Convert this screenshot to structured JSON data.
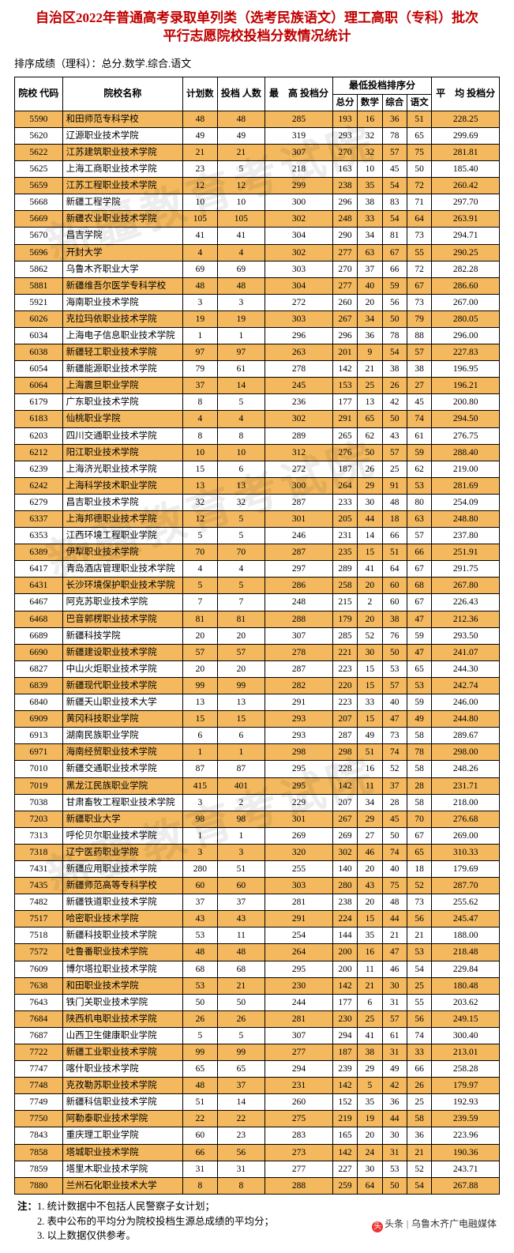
{
  "title_line1": "自治区2022年普通高考录取单列类（选考民族语文）理工高职（专科）批次",
  "title_line2": "平行志愿院校投档分数情况统计",
  "subtitle": "排序成绩（理科）：总分.数学.综合.语文",
  "watermark_text": "新疆教育考试院",
  "headers": {
    "code": "院校\n代码",
    "name": "院校名称",
    "plan": "计划数",
    "filed": "投档\n人数",
    "max": "最　高\n投档分",
    "min_group": "最低投档排序分",
    "min_total": "总分",
    "min_math": "数学",
    "min_comp": "综合",
    "min_lang": "语文",
    "avg": "平　均\n投档分"
  },
  "rows": [
    {
      "hl": 1,
      "code": "5590",
      "name": "和田师范专科学校",
      "plan": "48",
      "filed": "48",
      "max": "285",
      "t": "193",
      "m": "16",
      "c": "36",
      "l": "51",
      "avg": "228.25"
    },
    {
      "hl": 0,
      "code": "5620",
      "name": "辽源职业技术学院",
      "plan": "49",
      "filed": "49",
      "max": "319",
      "t": "293",
      "m": "32",
      "c": "78",
      "l": "65",
      "avg": "299.69"
    },
    {
      "hl": 1,
      "code": "5622",
      "name": "江苏建筑职业技术学院",
      "plan": "21",
      "filed": "21",
      "max": "307",
      "t": "270",
      "m": "32",
      "c": "57",
      "l": "75",
      "avg": "281.81"
    },
    {
      "hl": 0,
      "code": "5625",
      "name": "上海工商职业技术学院",
      "plan": "23",
      "filed": "5",
      "max": "218",
      "t": "163",
      "m": "10",
      "c": "45",
      "l": "50",
      "avg": "185.40"
    },
    {
      "hl": 1,
      "code": "5659",
      "name": "江苏工程职业技术学院",
      "plan": "12",
      "filed": "12",
      "max": "299",
      "t": "238",
      "m": "35",
      "c": "54",
      "l": "72",
      "avg": "260.42"
    },
    {
      "hl": 0,
      "code": "5668",
      "name": "新疆工程学院",
      "plan": "10",
      "filed": "10",
      "max": "300",
      "t": "296",
      "m": "38",
      "c": "83",
      "l": "71",
      "avg": "297.70"
    },
    {
      "hl": 1,
      "code": "5669",
      "name": "新疆农业职业技术学院",
      "plan": "105",
      "filed": "105",
      "max": "302",
      "t": "248",
      "m": "33",
      "c": "54",
      "l": "64",
      "avg": "263.91"
    },
    {
      "hl": 0,
      "code": "5670",
      "name": "昌吉学院",
      "plan": "41",
      "filed": "41",
      "max": "304",
      "t": "290",
      "m": "34",
      "c": "81",
      "l": "73",
      "avg": "294.71"
    },
    {
      "hl": 1,
      "code": "5696",
      "name": "开封大学",
      "plan": "4",
      "filed": "4",
      "max": "302",
      "t": "277",
      "m": "63",
      "c": "67",
      "l": "55",
      "avg": "290.25"
    },
    {
      "hl": 0,
      "code": "5862",
      "name": "乌鲁木齐职业大学",
      "plan": "69",
      "filed": "69",
      "max": "303",
      "t": "270",
      "m": "37",
      "c": "66",
      "l": "72",
      "avg": "282.28"
    },
    {
      "hl": 1,
      "code": "5881",
      "name": "新疆维吾尔医学专科学校",
      "plan": "48",
      "filed": "48",
      "max": "304",
      "t": "277",
      "m": "40",
      "c": "59",
      "l": "67",
      "avg": "286.60"
    },
    {
      "hl": 0,
      "code": "5921",
      "name": "海南职业技术学院",
      "plan": "3",
      "filed": "3",
      "max": "272",
      "t": "260",
      "m": "20",
      "c": "56",
      "l": "73",
      "avg": "267.00"
    },
    {
      "hl": 1,
      "code": "6026",
      "name": "克拉玛依职业技术学院",
      "plan": "19",
      "filed": "19",
      "max": "303",
      "t": "267",
      "m": "34",
      "c": "50",
      "l": "79",
      "avg": "280.05"
    },
    {
      "hl": 0,
      "code": "6034",
      "name": "上海电子信息职业技术学院",
      "plan": "1",
      "filed": "1",
      "max": "296",
      "t": "296",
      "m": "36",
      "c": "78",
      "l": "88",
      "avg": "296.00"
    },
    {
      "hl": 1,
      "code": "6038",
      "name": "新疆轻工职业技术学院",
      "plan": "97",
      "filed": "97",
      "max": "263",
      "t": "201",
      "m": "9",
      "c": "54",
      "l": "57",
      "avg": "227.83"
    },
    {
      "hl": 0,
      "code": "6054",
      "name": "新疆能源职业技术学院",
      "plan": "79",
      "filed": "61",
      "max": "278",
      "t": "142",
      "m": "21",
      "c": "38",
      "l": "38",
      "avg": "196.95"
    },
    {
      "hl": 1,
      "code": "6064",
      "name": "上海震旦职业学院",
      "plan": "37",
      "filed": "14",
      "max": "245",
      "t": "153",
      "m": "25",
      "c": "26",
      "l": "27",
      "avg": "196.21"
    },
    {
      "hl": 0,
      "code": "6179",
      "name": "广东职业技术学院",
      "plan": "8",
      "filed": "5",
      "max": "236",
      "t": "177",
      "m": "13",
      "c": "42",
      "l": "45",
      "avg": "200.80"
    },
    {
      "hl": 1,
      "code": "6183",
      "name": "仙桃职业学院",
      "plan": "4",
      "filed": "4",
      "max": "302",
      "t": "291",
      "m": "65",
      "c": "50",
      "l": "74",
      "avg": "294.50"
    },
    {
      "hl": 0,
      "code": "6203",
      "name": "四川交通职业技术学院",
      "plan": "8",
      "filed": "8",
      "max": "289",
      "t": "265",
      "m": "62",
      "c": "43",
      "l": "61",
      "avg": "276.75"
    },
    {
      "hl": 1,
      "code": "6212",
      "name": "阳江职业技术学院",
      "plan": "10",
      "filed": "10",
      "max": "312",
      "t": "276",
      "m": "50",
      "c": "57",
      "l": "59",
      "avg": "288.40"
    },
    {
      "hl": 0,
      "code": "6239",
      "name": "上海济光职业技术学院",
      "plan": "15",
      "filed": "6",
      "max": "272",
      "t": "187",
      "m": "26",
      "c": "25",
      "l": "62",
      "avg": "219.00"
    },
    {
      "hl": 1,
      "code": "6242",
      "name": "上海科学技术职业学院",
      "plan": "13",
      "filed": "13",
      "max": "300",
      "t": "264",
      "m": "29",
      "c": "91",
      "l": "53",
      "avg": "281.69"
    },
    {
      "hl": 0,
      "code": "6279",
      "name": "昌吉职业技术学院",
      "plan": "32",
      "filed": "32",
      "max": "287",
      "t": "233",
      "m": "30",
      "c": "48",
      "l": "80",
      "avg": "254.09"
    },
    {
      "hl": 1,
      "code": "6337",
      "name": "上海邦德职业技术学院",
      "plan": "12",
      "filed": "5",
      "max": "301",
      "t": "205",
      "m": "44",
      "c": "18",
      "l": "63",
      "avg": "248.80"
    },
    {
      "hl": 0,
      "code": "6353",
      "name": "江西环境工程职业学院",
      "plan": "5",
      "filed": "5",
      "max": "246",
      "t": "231",
      "m": "14",
      "c": "66",
      "l": "57",
      "avg": "237.80"
    },
    {
      "hl": 1,
      "code": "6389",
      "name": "伊犁职业技术学院",
      "plan": "70",
      "filed": "70",
      "max": "287",
      "t": "235",
      "m": "15",
      "c": "51",
      "l": "66",
      "avg": "251.91"
    },
    {
      "hl": 0,
      "code": "6417",
      "name": "青岛酒店管理职业技术学院",
      "plan": "4",
      "filed": "4",
      "max": "297",
      "t": "289",
      "m": "41",
      "c": "64",
      "l": "67",
      "avg": "291.75"
    },
    {
      "hl": 1,
      "code": "6431",
      "name": "长沙环境保护职业技术学院",
      "plan": "5",
      "filed": "5",
      "max": "286",
      "t": "258",
      "m": "20",
      "c": "60",
      "l": "68",
      "avg": "267.80"
    },
    {
      "hl": 0,
      "code": "6467",
      "name": "阿克苏职业技术学院",
      "plan": "7",
      "filed": "7",
      "max": "248",
      "t": "215",
      "m": "2",
      "c": "60",
      "l": "67",
      "avg": "226.43"
    },
    {
      "hl": 1,
      "code": "6468",
      "name": "巴音郭楞职业技术学院",
      "plan": "81",
      "filed": "81",
      "max": "288",
      "t": "179",
      "m": "20",
      "c": "38",
      "l": "47",
      "avg": "212.36"
    },
    {
      "hl": 0,
      "code": "6689",
      "name": "新疆科技学院",
      "plan": "20",
      "filed": "20",
      "max": "307",
      "t": "285",
      "m": "52",
      "c": "76",
      "l": "59",
      "avg": "293.50"
    },
    {
      "hl": 1,
      "code": "6690",
      "name": "新疆建设职业技术学院",
      "plan": "57",
      "filed": "57",
      "max": "278",
      "t": "221",
      "m": "30",
      "c": "50",
      "l": "47",
      "avg": "241.07"
    },
    {
      "hl": 0,
      "code": "6827",
      "name": "中山火炬职业技术学院",
      "plan": "20",
      "filed": "20",
      "max": "287",
      "t": "223",
      "m": "15",
      "c": "53",
      "l": "65",
      "avg": "244.30"
    },
    {
      "hl": 1,
      "code": "6839",
      "name": "新疆现代职业技术学院",
      "plan": "99",
      "filed": "99",
      "max": "282",
      "t": "220",
      "m": "15",
      "c": "57",
      "l": "53",
      "avg": "242.74"
    },
    {
      "hl": 0,
      "code": "6840",
      "name": "新疆天山职业技术大学",
      "plan": "13",
      "filed": "13",
      "max": "291",
      "t": "223",
      "m": "33",
      "c": "40",
      "l": "59",
      "avg": "246.00"
    },
    {
      "hl": 1,
      "code": "6909",
      "name": "黄冈科技职业学院",
      "plan": "15",
      "filed": "15",
      "max": "293",
      "t": "207",
      "m": "15",
      "c": "47",
      "l": "49",
      "avg": "244.80"
    },
    {
      "hl": 0,
      "code": "6913",
      "name": "湖南民族职业学院",
      "plan": "6",
      "filed": "6",
      "max": "293",
      "t": "287",
      "m": "49",
      "c": "73",
      "l": "58",
      "avg": "289.67"
    },
    {
      "hl": 1,
      "code": "6971",
      "name": "海南经贸职业技术学院",
      "plan": "1",
      "filed": "1",
      "max": "298",
      "t": "298",
      "m": "51",
      "c": "74",
      "l": "78",
      "avg": "298.00"
    },
    {
      "hl": 0,
      "code": "7010",
      "name": "新疆交通职业技术学院",
      "plan": "87",
      "filed": "87",
      "max": "295",
      "t": "228",
      "m": "16",
      "c": "52",
      "l": "58",
      "avg": "248.26"
    },
    {
      "hl": 1,
      "code": "7019",
      "name": "黑龙江民族职业学院",
      "plan": "415",
      "filed": "401",
      "max": "295",
      "t": "142",
      "m": "11",
      "c": "37",
      "l": "28",
      "avg": "231.71"
    },
    {
      "hl": 0,
      "code": "7038",
      "name": "甘肃畜牧工程职业技术学院",
      "plan": "3",
      "filed": "2",
      "max": "229",
      "t": "207",
      "m": "34",
      "c": "28",
      "l": "58",
      "avg": "218.00"
    },
    {
      "hl": 1,
      "code": "7203",
      "name": "新疆职业大学",
      "plan": "98",
      "filed": "98",
      "max": "301",
      "t": "267",
      "m": "29",
      "c": "45",
      "l": "70",
      "avg": "276.68"
    },
    {
      "hl": 0,
      "code": "7313",
      "name": "呼伦贝尔职业技术学院",
      "plan": "1",
      "filed": "1",
      "max": "269",
      "t": "269",
      "m": "27",
      "c": "50",
      "l": "67",
      "avg": "269.00"
    },
    {
      "hl": 1,
      "code": "7318",
      "name": "辽宁医药职业学院",
      "plan": "3",
      "filed": "3",
      "max": "320",
      "t": "302",
      "m": "46",
      "c": "74",
      "l": "65",
      "avg": "310.33"
    },
    {
      "hl": 0,
      "code": "7431",
      "name": "新疆应用职业技术学院",
      "plan": "280",
      "filed": "51",
      "max": "255",
      "t": "140",
      "m": "20",
      "c": "40",
      "l": "18",
      "avg": "179.69"
    },
    {
      "hl": 1,
      "code": "7435",
      "name": "新疆师范高等专科学校",
      "plan": "60",
      "filed": "60",
      "max": "303",
      "t": "280",
      "m": "43",
      "c": "75",
      "l": "52",
      "avg": "287.70"
    },
    {
      "hl": 0,
      "code": "7482",
      "name": "新疆铁道职业技术学院",
      "plan": "37",
      "filed": "37",
      "max": "281",
      "t": "238",
      "m": "20",
      "c": "48",
      "l": "73",
      "avg": "255.62"
    },
    {
      "hl": 1,
      "code": "7517",
      "name": "哈密职业技术学院",
      "plan": "43",
      "filed": "43",
      "max": "291",
      "t": "224",
      "m": "15",
      "c": "44",
      "l": "56",
      "avg": "245.47"
    },
    {
      "hl": 0,
      "code": "7518",
      "name": "新疆科技职业技术学院",
      "plan": "53",
      "filed": "11",
      "max": "254",
      "t": "144",
      "m": "35",
      "c": "21",
      "l": "21",
      "avg": "188.00"
    },
    {
      "hl": 1,
      "code": "7572",
      "name": "吐鲁番职业技术学院",
      "plan": "48",
      "filed": "48",
      "max": "264",
      "t": "200",
      "m": "16",
      "c": "47",
      "l": "53",
      "avg": "218.48"
    },
    {
      "hl": 0,
      "code": "7609",
      "name": "博尔塔拉职业技术学院",
      "plan": "68",
      "filed": "68",
      "max": "295",
      "t": "200",
      "m": "11",
      "c": "46",
      "l": "54",
      "avg": "229.84"
    },
    {
      "hl": 1,
      "code": "7638",
      "name": "和田职业技术学院",
      "plan": "53",
      "filed": "21",
      "max": "230",
      "t": "142",
      "m": "21",
      "c": "30",
      "l": "25",
      "avg": "180.48"
    },
    {
      "hl": 0,
      "code": "7643",
      "name": "铁门关职业技术学院",
      "plan": "50",
      "filed": "50",
      "max": "244",
      "t": "177",
      "m": "6",
      "c": "31",
      "l": "55",
      "avg": "203.62"
    },
    {
      "hl": 1,
      "code": "7684",
      "name": "陕西机电职业技术学院",
      "plan": "26",
      "filed": "26",
      "max": "281",
      "t": "230",
      "m": "25",
      "c": "57",
      "l": "56",
      "avg": "249.15"
    },
    {
      "hl": 0,
      "code": "7687",
      "name": "山西卫生健康职业学院",
      "plan": "5",
      "filed": "5",
      "max": "307",
      "t": "294",
      "m": "41",
      "c": "61",
      "l": "74",
      "avg": "300.40"
    },
    {
      "hl": 1,
      "code": "7722",
      "name": "新疆工业职业技术学院",
      "plan": "99",
      "filed": "99",
      "max": "277",
      "t": "187",
      "m": "38",
      "c": "31",
      "l": "33",
      "avg": "213.01"
    },
    {
      "hl": 0,
      "code": "7747",
      "name": "喀什职业技术学院",
      "plan": "65",
      "filed": "65",
      "max": "294",
      "t": "239",
      "m": "29",
      "c": "49",
      "l": "66",
      "avg": "258.28"
    },
    {
      "hl": 1,
      "code": "7748",
      "name": "克孜勒苏职业技术学院",
      "plan": "48",
      "filed": "37",
      "max": "231",
      "t": "142",
      "m": "5",
      "c": "42",
      "l": "26",
      "avg": "179.97"
    },
    {
      "hl": 0,
      "code": "7749",
      "name": "新疆科信职业技术学院",
      "plan": "51",
      "filed": "14",
      "max": "260",
      "t": "152",
      "m": "35",
      "c": "36",
      "l": "25",
      "avg": "192.93"
    },
    {
      "hl": 1,
      "code": "7750",
      "name": "阿勒泰职业技术学院",
      "plan": "22",
      "filed": "22",
      "max": "275",
      "t": "219",
      "m": "19",
      "c": "44",
      "l": "58",
      "avg": "239.59"
    },
    {
      "hl": 0,
      "code": "7843",
      "name": "重庆理工职业学院",
      "plan": "60",
      "filed": "23",
      "max": "283",
      "t": "165",
      "m": "20",
      "c": "30",
      "l": "36",
      "avg": "223.96"
    },
    {
      "hl": 1,
      "code": "7858",
      "name": "塔城职业技术学院",
      "plan": "66",
      "filed": "56",
      "max": "273",
      "t": "142",
      "m": "24",
      "c": "31",
      "l": "21",
      "avg": "190.36"
    },
    {
      "hl": 0,
      "code": "7859",
      "name": "塔里木职业技术学院",
      "plan": "31",
      "filed": "31",
      "max": "277",
      "t": "227",
      "m": "30",
      "c": "53",
      "l": "52",
      "avg": "243.71"
    },
    {
      "hl": 1,
      "code": "7880",
      "name": "兰州石化职业技术大学",
      "plan": "8",
      "filed": "8",
      "max": "288",
      "t": "259",
      "m": "64",
      "c": "50",
      "l": "54",
      "avg": "267.88"
    }
  ],
  "notes": {
    "label": "注：",
    "n1": "1. 统计数据中不包括人民警察子女计划；",
    "n2": "2. 表中公布的平均分为院校投档生源总成绩的平均分；",
    "n3": "3. 以上数据仅供参考。"
  },
  "source_prefix": "头条",
  "source_name": "乌鲁木齐广电融媒体"
}
